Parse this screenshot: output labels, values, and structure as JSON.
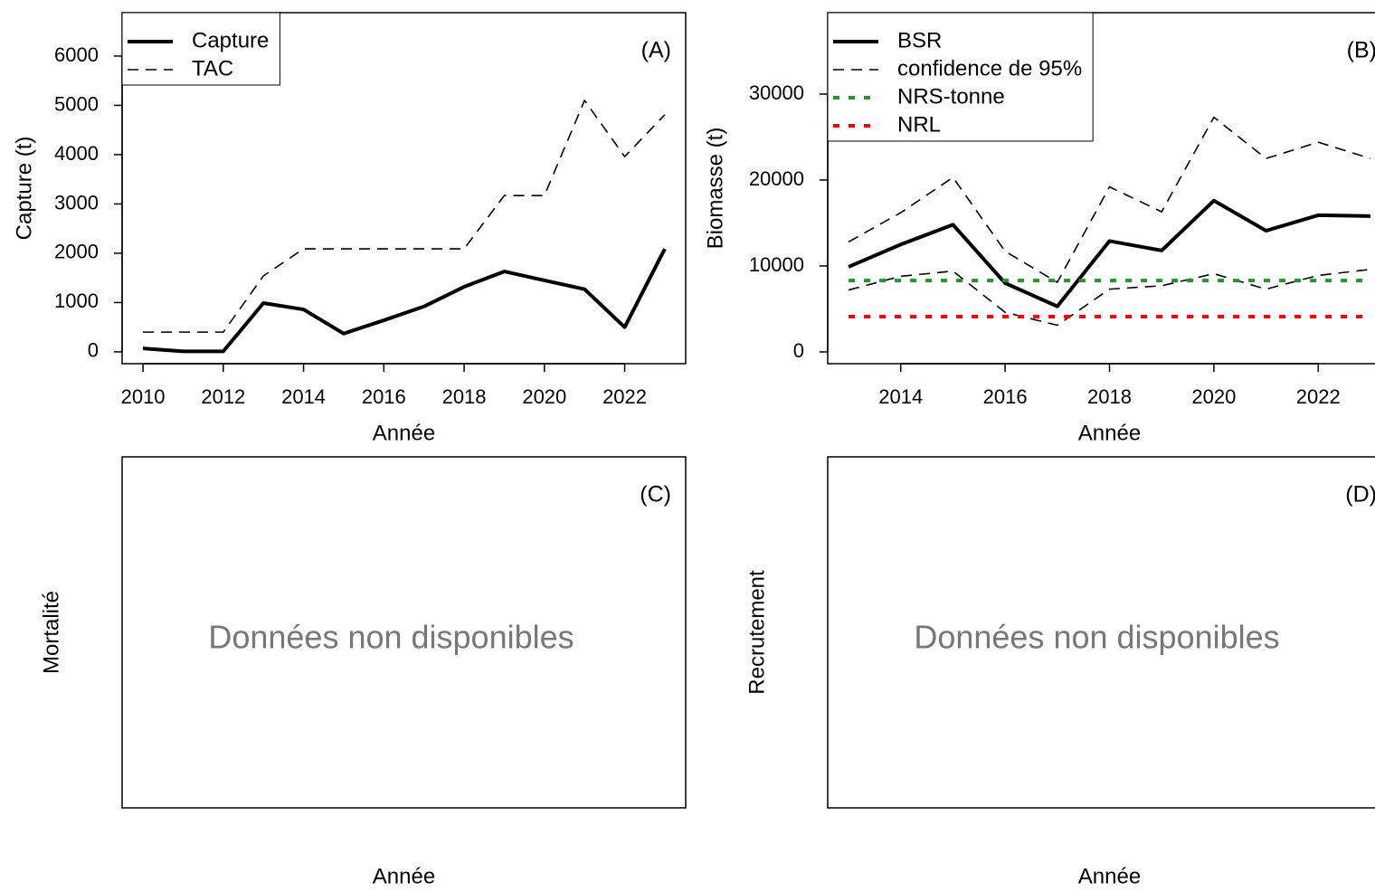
{
  "chart_data": [
    {
      "type": "line",
      "panel_label": "(A)",
      "x_label": "Année",
      "y_label": "Capture (t)",
      "xlim": [
        2009.48,
        2023.52
      ],
      "ylim": [
        -240,
        6880
      ],
      "xticks": [
        2010,
        2012,
        2014,
        2016,
        2018,
        2020,
        2022
      ],
      "yticks": [
        0,
        1000,
        2000,
        3000,
        4000,
        5000,
        6000
      ],
      "x": [
        2010,
        2011,
        2012,
        2013,
        2014,
        2015,
        2016,
        2017,
        2018,
        2019,
        2020,
        2021,
        2022,
        2023
      ],
      "legend": "topleft",
      "series": [
        {
          "name": "Capture",
          "color": "#000000",
          "style": "solid",
          "width": 4,
          "values": [
            70,
            10,
            10,
            990,
            860,
            370,
            640,
            920,
            1320,
            1630,
            1450,
            1270,
            500,
            2090
          ]
        },
        {
          "name": "TAC",
          "color": "#000000",
          "style": "dashed",
          "width": 1.6,
          "values": [
            400,
            400,
            400,
            1540,
            2090,
            2090,
            2090,
            2090,
            2090,
            3170,
            3170,
            5100,
            3960,
            4810
          ]
        }
      ]
    },
    {
      "type": "line",
      "panel_label": "(B)",
      "x_label": "Année",
      "y_label": "Biomasse (t)",
      "xlim": [
        2012.6,
        2023.4
      ],
      "ylim": [
        -1370,
        39470
      ],
      "xticks": [
        2014,
        2016,
        2018,
        2020,
        2022
      ],
      "yticks": [
        0,
        10000,
        20000,
        30000
      ],
      "x": [
        2013,
        2014,
        2015,
        2016,
        2017,
        2018,
        2019,
        2020,
        2021,
        2022,
        2023
      ],
      "legend": "topleft",
      "series": [
        {
          "name": "BSR",
          "color": "#000000",
          "style": "solid",
          "width": 4,
          "values": [
            9900,
            12500,
            14800,
            8000,
            5300,
            12900,
            11800,
            17600,
            14100,
            15900,
            15800
          ]
        },
        {
          "name": "confidence de 95%",
          "color": "#000000",
          "style": "dashed",
          "width": 1.6,
          "values": [
            12800,
            16200,
            20300,
            11700,
            8100,
            19200,
            16300,
            27300,
            22500,
            24400,
            22500
          ]
        },
        {
          "name": null,
          "color": "#000000",
          "style": "dashed",
          "width": 1.6,
          "values": [
            7200,
            8800,
            9400,
            4600,
            3100,
            7300,
            7700,
            9100,
            7300,
            8900,
            9600
          ]
        },
        {
          "name": "NRS-tonne",
          "color": "#1f9a1f",
          "style": "dotted",
          "width": 4,
          "values": [
            8300,
            8300,
            8300,
            8300,
            8300,
            8300,
            8300,
            8300,
            8300,
            8300,
            8300
          ]
        },
        {
          "name": "NRL",
          "color": "#ff0000",
          "style": "dotted",
          "width": 4,
          "values": [
            4100,
            4100,
            4100,
            4100,
            4100,
            4100,
            4100,
            4100,
            4100,
            4100,
            4100
          ]
        }
      ]
    },
    {
      "type": "line",
      "panel_label": "(C)",
      "x_label": "Année",
      "y_label": "Mortalité",
      "annotation": "Données non disponibles"
    },
    {
      "type": "line",
      "panel_label": "(D)",
      "x_label": "Année",
      "y_label": "Recrutement",
      "annotation": "Données non disponibles"
    }
  ]
}
